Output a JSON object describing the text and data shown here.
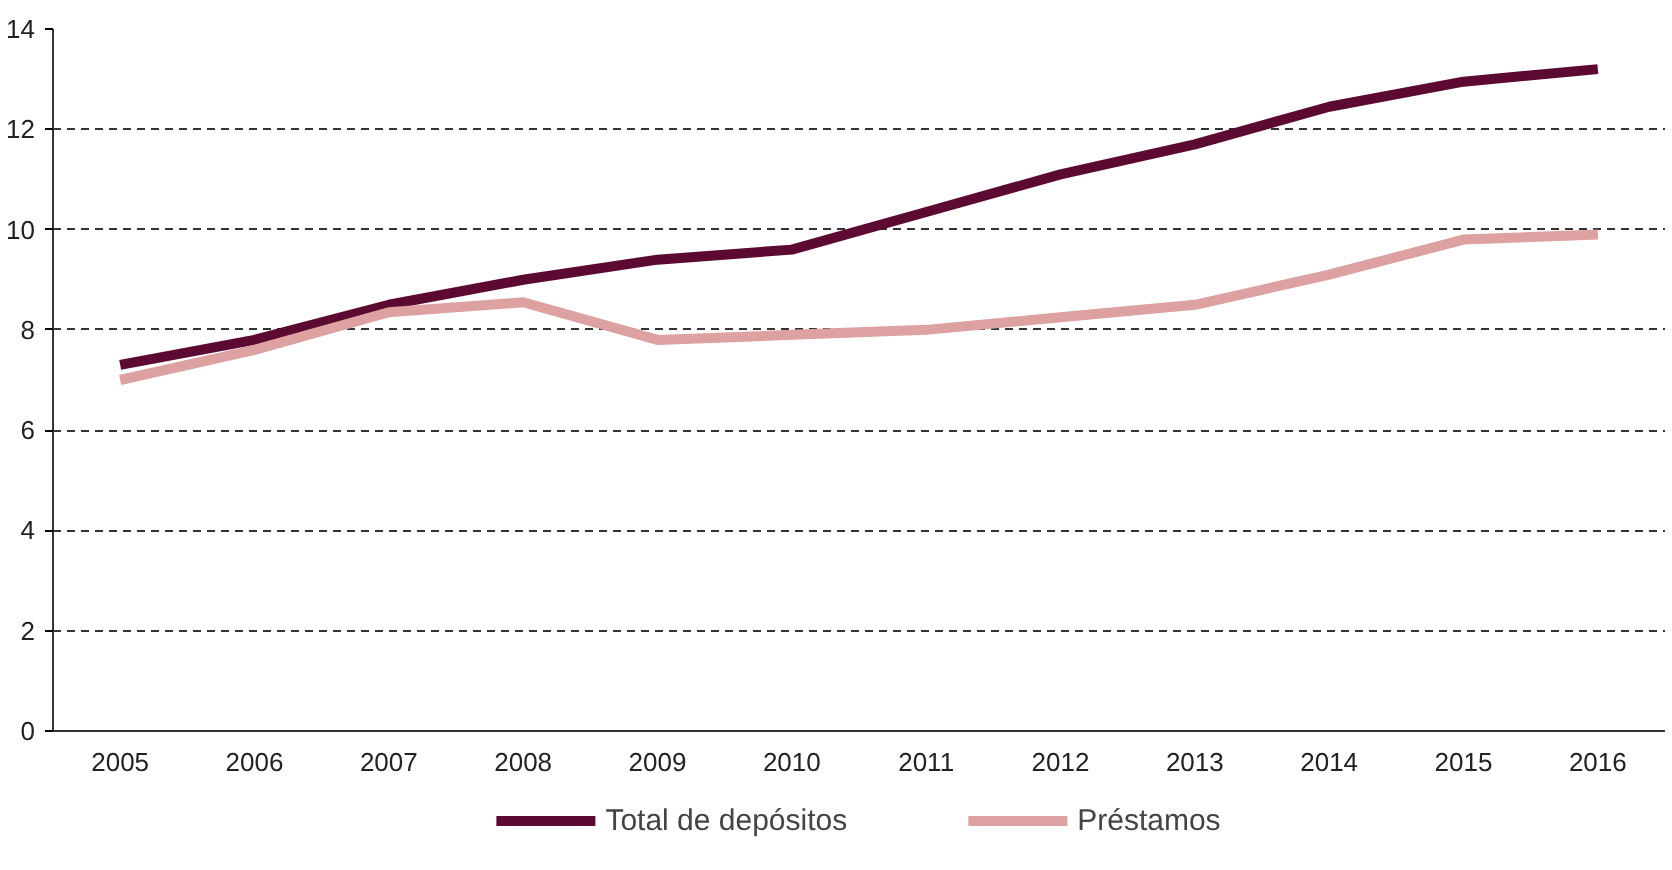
{
  "chart_data": {
    "type": "line",
    "categories": [
      "2005",
      "2006",
      "2007",
      "2008",
      "2009",
      "2010",
      "2011",
      "2012",
      "2013",
      "2014",
      "2015",
      "2016"
    ],
    "series": [
      {
        "name": "Total de depósitos",
        "color": "#5c0a32",
        "values": [
          7.3,
          7.8,
          8.5,
          9.0,
          9.4,
          9.6,
          10.35,
          11.1,
          11.7,
          12.45,
          12.95,
          13.2
        ]
      },
      {
        "name": "Préstamos",
        "color": "#dca1a0",
        "values": [
          7.0,
          7.6,
          8.35,
          8.55,
          7.8,
          7.9,
          8.0,
          8.25,
          8.5,
          9.1,
          9.8,
          9.9
        ]
      }
    ],
    "ylim": [
      0,
      14
    ],
    "yticks": [
      0,
      2,
      4,
      6,
      8,
      10,
      12,
      14
    ],
    "grid": "y",
    "legend": "bottom",
    "line_style": "solid",
    "marker": "none"
  }
}
